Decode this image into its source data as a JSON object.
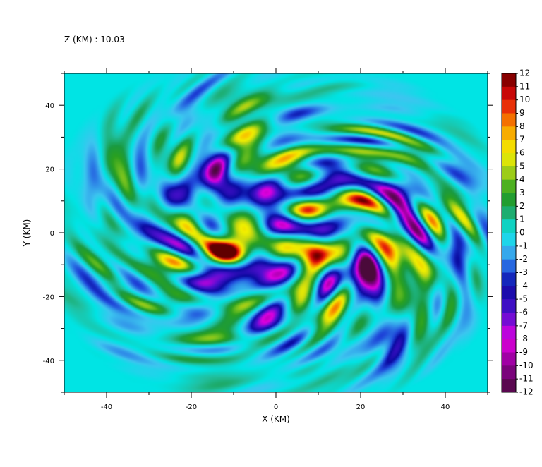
{
  "chart_data": {
    "type": "heatmap",
    "title": "Z (KM) : 10.03",
    "xlabel": "X (KM)",
    "ylabel": "Y (KM)",
    "xlim": [
      -50,
      50
    ],
    "ylim": [
      -50,
      50
    ],
    "x_ticks": [
      -40,
      -20,
      0,
      20,
      40
    ],
    "y_ticks": [
      40,
      20,
      0,
      -20,
      -40
    ],
    "colorbar": {
      "min": -12,
      "max": 12,
      "ticks": [
        12,
        11,
        10,
        9,
        8,
        7,
        6,
        5,
        4,
        3,
        2,
        1,
        0,
        -1,
        -2,
        -3,
        -4,
        -5,
        -6,
        -7,
        -8,
        -9,
        -10,
        -11,
        -12
      ],
      "colors": [
        {
          "v": -12,
          "c": "#4a0a3a"
        },
        {
          "v": -10,
          "c": "#8a0090"
        },
        {
          "v": -8,
          "c": "#e000e0"
        },
        {
          "v": -6,
          "c": "#5010d0"
        },
        {
          "v": -4,
          "c": "#0a0aa0"
        },
        {
          "v": -3,
          "c": "#1e44d8"
        },
        {
          "v": -2,
          "c": "#2f8ae8"
        },
        {
          "v": -1,
          "c": "#3cc6f0"
        },
        {
          "v": 0,
          "c": "#00e4e4"
        },
        {
          "v": 1,
          "c": "#20c0a0"
        },
        {
          "v": 2,
          "c": "#1a9a40"
        },
        {
          "v": 3,
          "c": "#2aa020"
        },
        {
          "v": 4,
          "c": "#70c020"
        },
        {
          "v": 5,
          "c": "#c8d810"
        },
        {
          "v": 6,
          "c": "#f0f000"
        },
        {
          "v": 7,
          "c": "#f8c800"
        },
        {
          "v": 8,
          "c": "#f89000"
        },
        {
          "v": 9,
          "c": "#f05000"
        },
        {
          "v": 10,
          "c": "#e01010"
        },
        {
          "v": 11,
          "c": "#b00000"
        },
        {
          "v": 12,
          "c": "#600000"
        }
      ]
    },
    "field_description": "turbulent perturbation field; mostly values between -3 and 3 with small patches reaching about +9 and -9, stronger activity in the right half near x=30..45",
    "grid": false,
    "legend_position": "right"
  }
}
